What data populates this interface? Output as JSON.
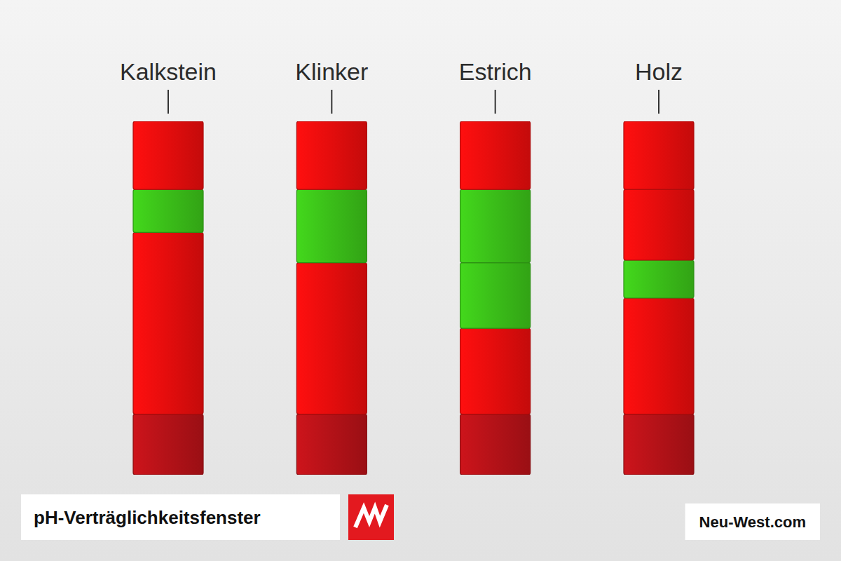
{
  "chart_data": {
    "type": "bar",
    "stacked": true,
    "title": "pH-Verträglichkeitsfenster",
    "source": "Neu-West.com",
    "categories": [
      "Kalkstein",
      "Klinker",
      "Estrich",
      "Holz"
    ],
    "ylim": [
      0,
      14
    ],
    "tick_labels": false,
    "grid": false,
    "series": [
      {
        "color": "#b51218",
        "values": [
          2.4,
          2.4,
          2.4,
          2.4
        ]
      },
      {
        "color": "#e60d0d",
        "values": [
          7.2,
          6.0,
          3.4,
          4.6
        ]
      },
      {
        "color": "#3bbf19",
        "values": [
          1.7,
          2.9,
          2.6,
          1.5
        ]
      },
      {
        "colors": [
          "#e60d0d",
          "#e60d0d",
          "#3bbf19",
          "#e60d0d"
        ],
        "values": [
          null,
          null,
          2.9,
          2.8
        ]
      },
      {
        "color": "#e60d0d",
        "values": [
          2.7,
          2.7,
          2.7,
          2.7
        ]
      }
    ]
  }
}
